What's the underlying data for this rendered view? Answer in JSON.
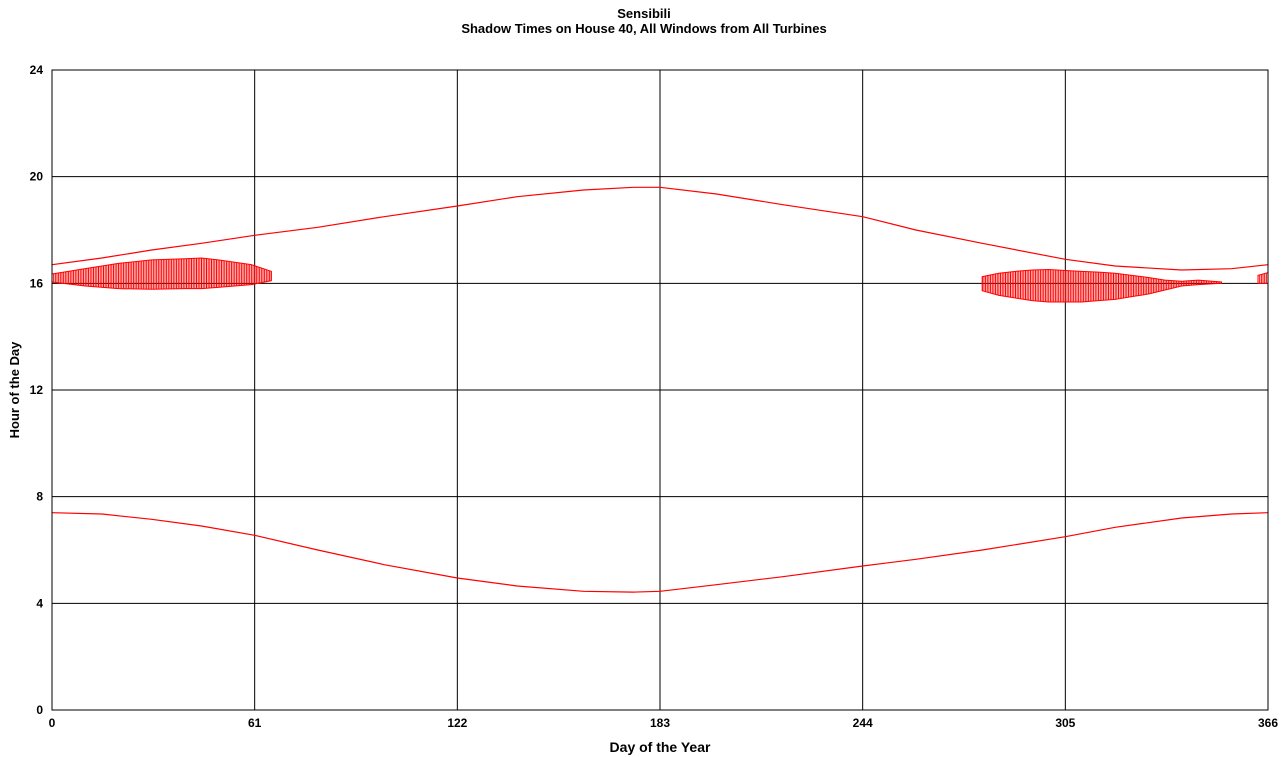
{
  "chart_data": {
    "type": "line",
    "title": "Sensibili",
    "subtitle": "Shadow Times on House 40, All Windows from All Turbines",
    "xlabel": "Day of the Year",
    "ylabel": "Hour of the Day",
    "xlim": [
      0,
      366
    ],
    "ylim": [
      0,
      24
    ],
    "xticks": [
      0,
      61,
      122,
      183,
      244,
      305,
      366
    ],
    "yticks": [
      0,
      4,
      8,
      12,
      16,
      20,
      24
    ],
    "grid": true,
    "line_color": "#ff0000",
    "series": [
      {
        "role": "sunset",
        "x": [
          0,
          15,
          30,
          45,
          61,
          80,
          100,
          122,
          140,
          160,
          175,
          183,
          200,
          220,
          244,
          260,
          280,
          305,
          320,
          340,
          355,
          366
        ],
        "y": [
          16.7,
          16.95,
          17.25,
          17.5,
          17.8,
          18.1,
          18.5,
          18.9,
          19.25,
          19.5,
          19.6,
          19.6,
          19.35,
          18.95,
          18.5,
          18.0,
          17.5,
          16.9,
          16.65,
          16.5,
          16.55,
          16.7
        ]
      },
      {
        "role": "sunrise",
        "x": [
          0,
          15,
          30,
          45,
          61,
          80,
          100,
          122,
          140,
          160,
          175,
          183,
          200,
          220,
          244,
          260,
          280,
          305,
          320,
          340,
          355,
          366
        ],
        "y": [
          7.4,
          7.35,
          7.15,
          6.9,
          6.55,
          6.0,
          5.45,
          4.95,
          4.65,
          4.45,
          4.42,
          4.45,
          4.7,
          5.0,
          5.4,
          5.65,
          6.0,
          6.5,
          6.85,
          7.2,
          7.35,
          7.4
        ]
      }
    ],
    "shadow_periods": [
      {
        "x": [
          0,
          10,
          20,
          30,
          40,
          45,
          50,
          60,
          66
        ],
        "y_start": [
          16.05,
          15.9,
          15.8,
          15.78,
          15.8,
          15.8,
          15.85,
          15.95,
          16.1
        ],
        "y_end": [
          16.35,
          16.55,
          16.75,
          16.88,
          16.92,
          16.95,
          16.88,
          16.7,
          16.45
        ]
      },
      {
        "x": [
          280,
          285,
          290,
          295,
          300,
          305,
          310,
          315,
          320,
          325,
          330,
          335,
          340,
          345,
          352
        ],
        "y_start": [
          15.72,
          15.55,
          15.45,
          15.35,
          15.3,
          15.3,
          15.3,
          15.35,
          15.4,
          15.5,
          15.6,
          15.75,
          15.9,
          15.95,
          16.0
        ],
        "y_end": [
          16.25,
          16.38,
          16.45,
          16.5,
          16.52,
          16.48,
          16.45,
          16.42,
          16.38,
          16.3,
          16.22,
          16.12,
          16.08,
          16.12,
          16.05
        ]
      },
      {
        "x": [
          363,
          366
        ],
        "y_start": [
          16.0,
          16.0
        ],
        "y_end": [
          16.3,
          16.4
        ]
      }
    ]
  }
}
